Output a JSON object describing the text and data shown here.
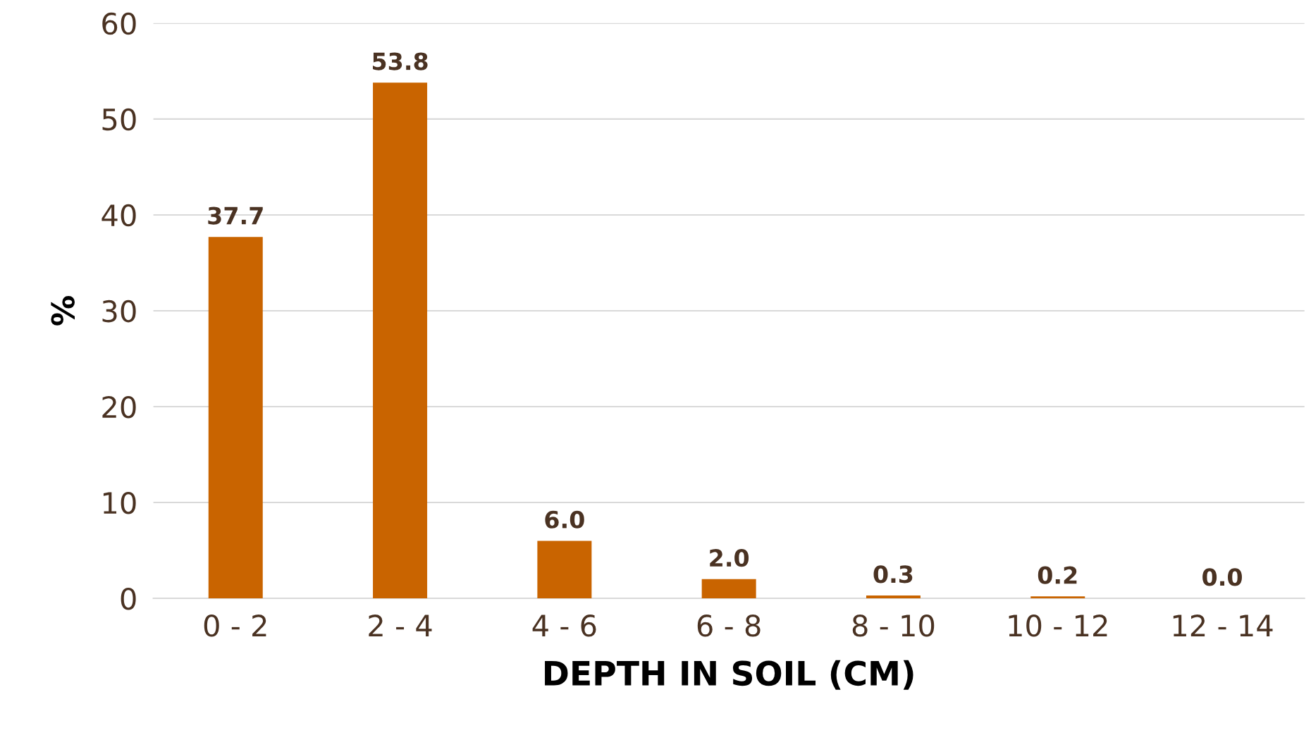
{
  "chart_data": {
    "type": "bar",
    "xlabel": "DEPTH IN SOIL (CM)",
    "ylabel": "%",
    "categories": [
      "0 - 2",
      "2 - 4",
      "4 - 6",
      "6 - 8",
      "8 - 10",
      "10 - 12",
      "12 - 14"
    ],
    "values": [
      37.7,
      53.8,
      6.0,
      2.0,
      0.3,
      0.2,
      0.0
    ],
    "value_labels": [
      "37.7",
      "53.8",
      "6.0",
      "2.0",
      "0.3",
      "0.2",
      "0.0"
    ],
    "color": "#c96400",
    "ylim": [
      0,
      60
    ],
    "yticks": [
      0,
      10,
      20,
      30,
      40,
      50,
      60
    ],
    "grid": "y",
    "legend": false
  }
}
